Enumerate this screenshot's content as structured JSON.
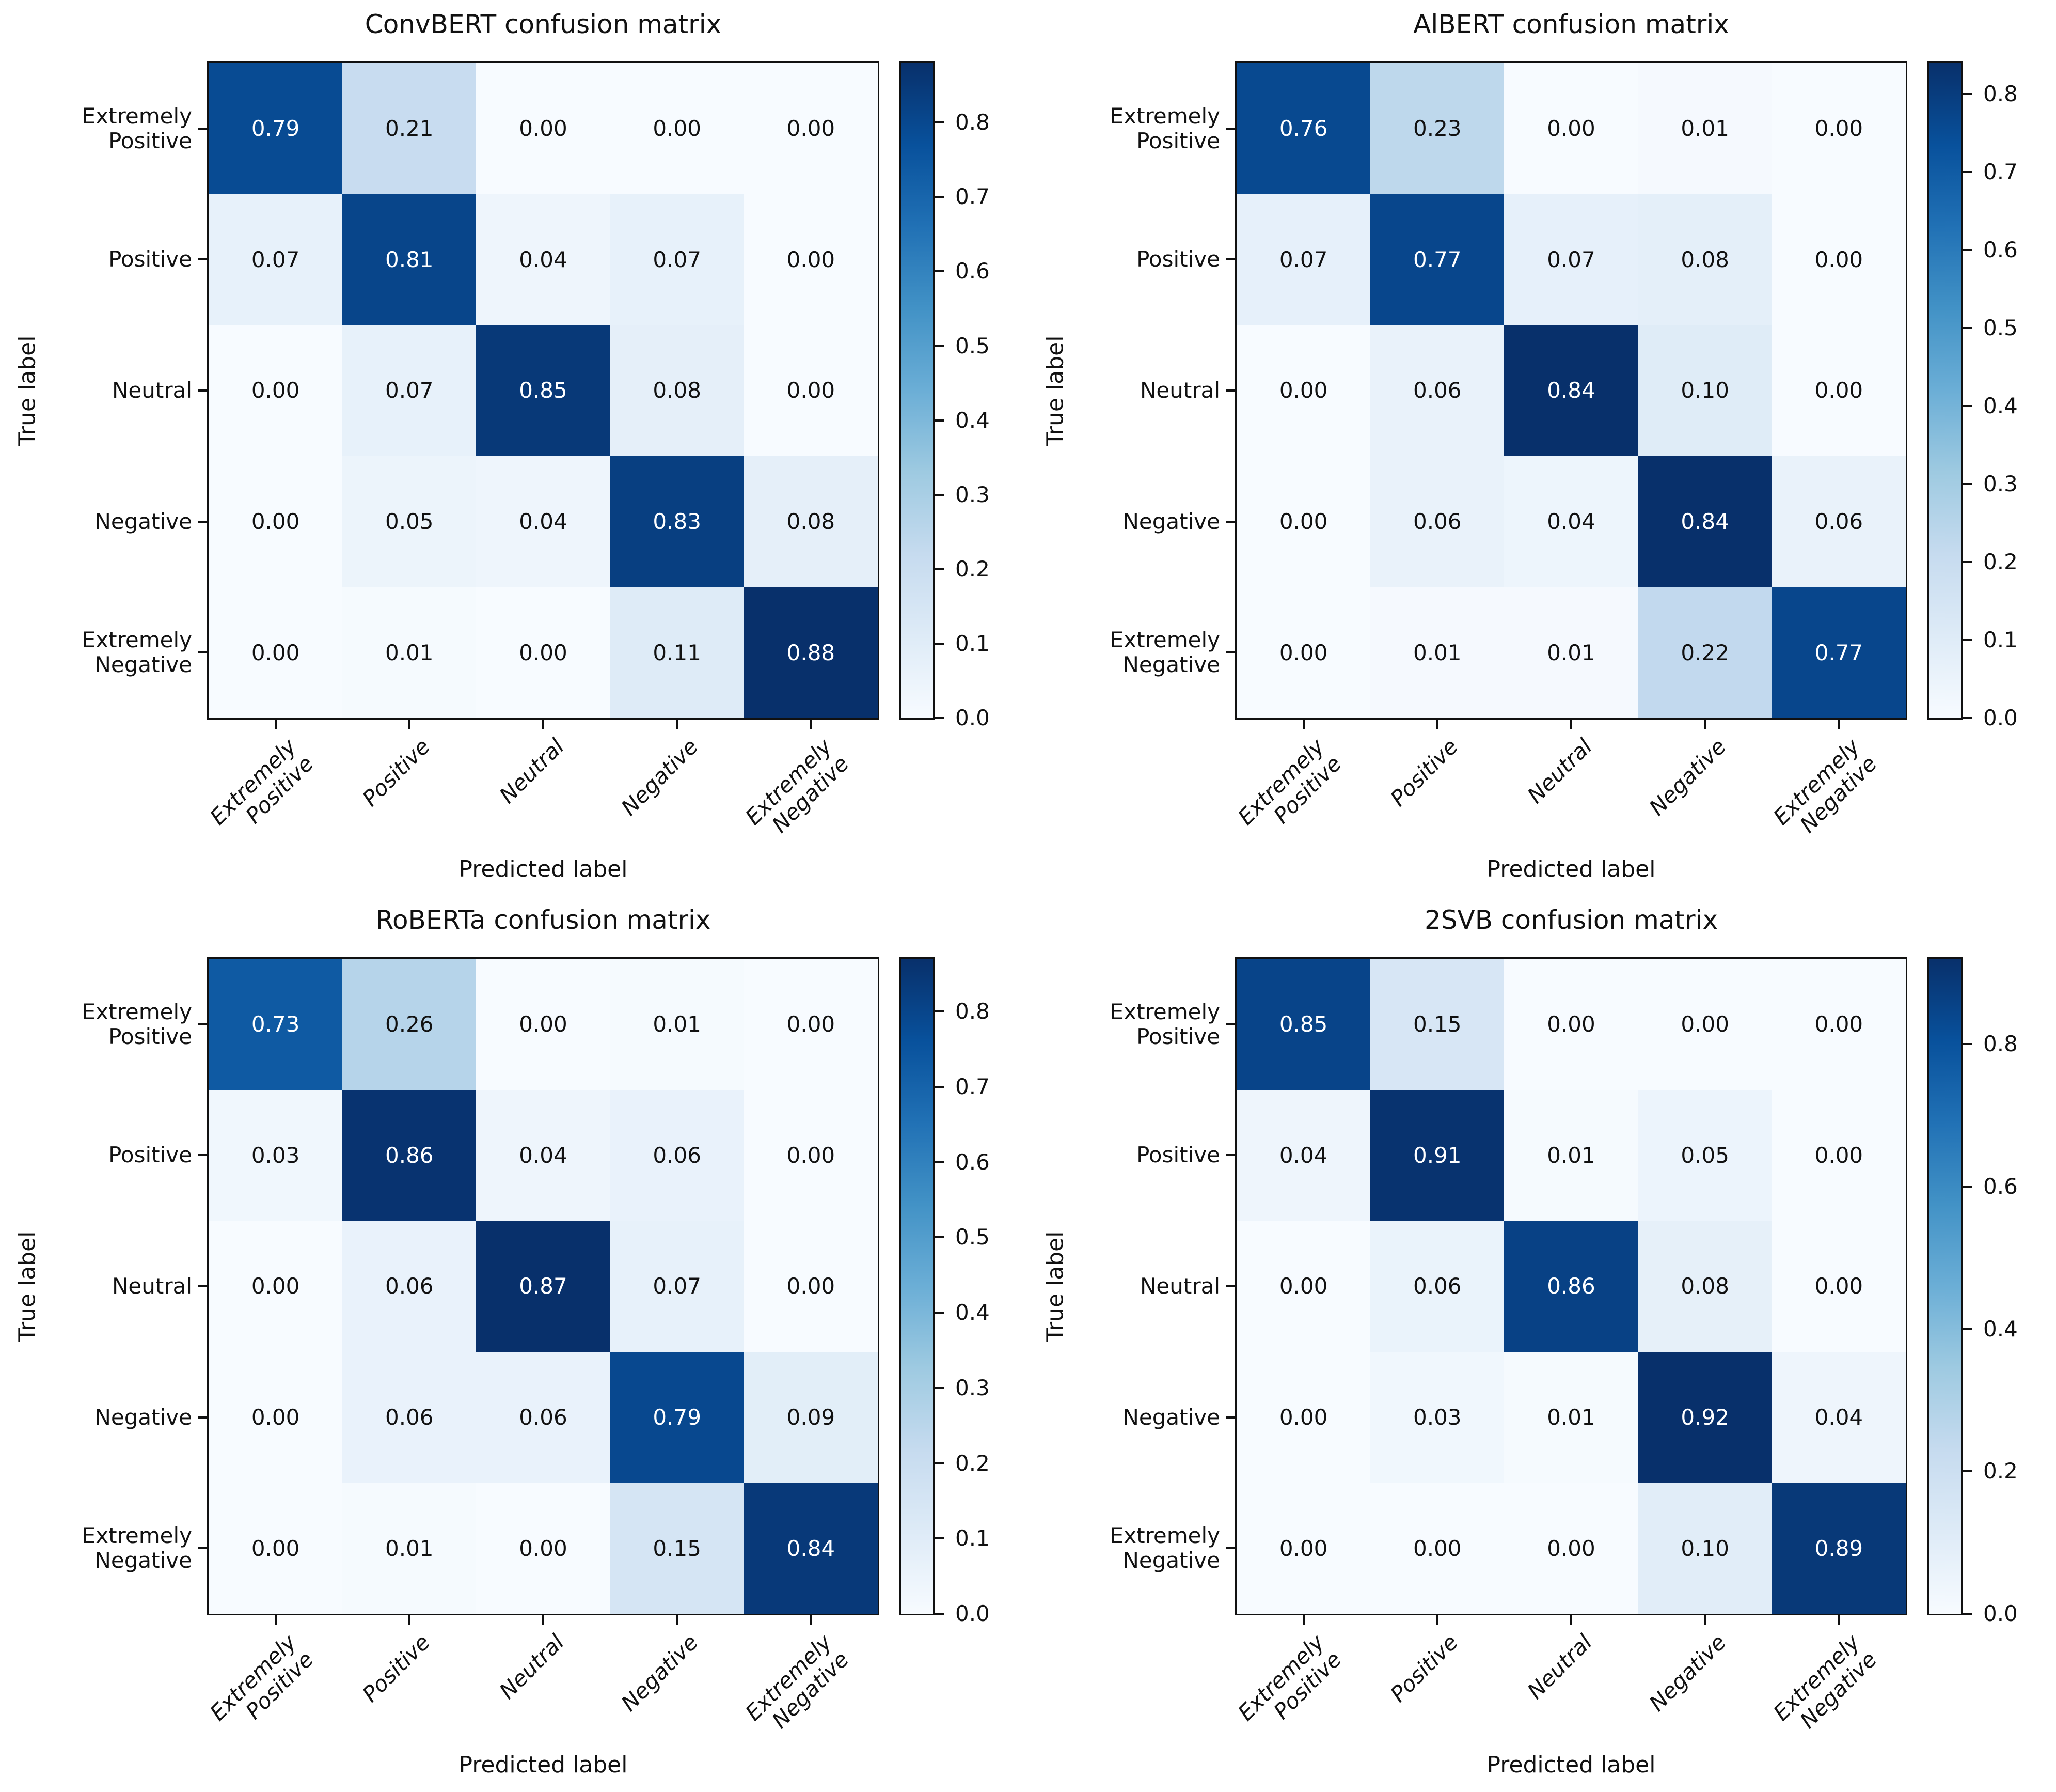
{
  "figure": {
    "layout": "2x2 grid of confusion-matrix heatmaps",
    "background": "#ffffff",
    "colormap": "Blues",
    "colormap_stops": [
      "#f7fbff",
      "#deebf7",
      "#c6dbef",
      "#9ecae1",
      "#6baed6",
      "#4292c6",
      "#2171b5",
      "#08519c",
      "#08306b"
    ],
    "cell_text_color_light": "#ffffff",
    "cell_text_color_dark": "#111111",
    "axis_color": "#111111"
  },
  "chart_data": [
    {
      "type": "heatmap",
      "title": "ConvBERT confusion matrix",
      "xlabel": "Predicted label",
      "ylabel": "True label",
      "x_categories": [
        "Extremely\nPositive",
        "Positive",
        "Neutral",
        "Negative",
        "Extremely\nNegative"
      ],
      "y_categories": [
        "Extremely\nPositive",
        "Positive",
        "Neutral",
        "Negative",
        "Extremely\nNegative"
      ],
      "matrix": [
        [
          0.79,
          0.21,
          0.0,
          0.0,
          0.0
        ],
        [
          0.07,
          0.81,
          0.04,
          0.07,
          0.0
        ],
        [
          0.0,
          0.07,
          0.85,
          0.08,
          0.0
        ],
        [
          0.0,
          0.05,
          0.04,
          0.83,
          0.08
        ],
        [
          0.0,
          0.01,
          0.0,
          0.11,
          0.88
        ]
      ],
      "colorbar_ticks": [
        0.0,
        0.1,
        0.2,
        0.3,
        0.4,
        0.5,
        0.6,
        0.7,
        0.8
      ],
      "colorbar_max": 0.88,
      "colorbar_min": 0.0
    },
    {
      "type": "heatmap",
      "title": "AlBERT confusion matrix",
      "xlabel": "Predicted label",
      "ylabel": "True label",
      "x_categories": [
        "Extremely\nPositive",
        "Positive",
        "Neutral",
        "Negative",
        "Extremely\nNegative"
      ],
      "y_categories": [
        "Extremely\nPositive",
        "Positive",
        "Neutral",
        "Negative",
        "Extremely\nNegative"
      ],
      "matrix": [
        [
          0.76,
          0.23,
          0.0,
          0.01,
          0.0
        ],
        [
          0.07,
          0.77,
          0.07,
          0.08,
          0.0
        ],
        [
          0.0,
          0.06,
          0.84,
          0.1,
          0.0
        ],
        [
          0.0,
          0.06,
          0.04,
          0.84,
          0.06
        ],
        [
          0.0,
          0.01,
          0.01,
          0.22,
          0.77
        ]
      ],
      "colorbar_ticks": [
        0.0,
        0.1,
        0.2,
        0.3,
        0.4,
        0.5,
        0.6,
        0.7,
        0.8
      ],
      "colorbar_max": 0.84,
      "colorbar_min": 0.0
    },
    {
      "type": "heatmap",
      "title": "RoBERTa confusion matrix",
      "xlabel": "Predicted label",
      "ylabel": "True label",
      "x_categories": [
        "Extremely\nPositive",
        "Positive",
        "Neutral",
        "Negative",
        "Extremely\nNegative"
      ],
      "y_categories": [
        "Extremely\nPositive",
        "Positive",
        "Neutral",
        "Negative",
        "Extremely\nNegative"
      ],
      "matrix": [
        [
          0.73,
          0.26,
          0.0,
          0.01,
          0.0
        ],
        [
          0.03,
          0.86,
          0.04,
          0.06,
          0.0
        ],
        [
          0.0,
          0.06,
          0.87,
          0.07,
          0.0
        ],
        [
          0.0,
          0.06,
          0.06,
          0.79,
          0.09
        ],
        [
          0.0,
          0.01,
          0.0,
          0.15,
          0.84
        ]
      ],
      "colorbar_ticks": [
        0.0,
        0.1,
        0.2,
        0.3,
        0.4,
        0.5,
        0.6,
        0.7,
        0.8
      ],
      "colorbar_max": 0.87,
      "colorbar_min": 0.0
    },
    {
      "type": "heatmap",
      "title": "2SVB confusion matrix",
      "xlabel": "Predicted label",
      "ylabel": "True label",
      "x_categories": [
        "Extremely\nPositive",
        "Positive",
        "Neutral",
        "Negative",
        "Extremely\nNegative"
      ],
      "y_categories": [
        "Extremely\nPositive",
        "Positive",
        "Neutral",
        "Negative",
        "Extremely\nNegative"
      ],
      "matrix": [
        [
          0.85,
          0.15,
          0.0,
          0.0,
          0.0
        ],
        [
          0.04,
          0.91,
          0.01,
          0.05,
          0.0
        ],
        [
          0.0,
          0.06,
          0.86,
          0.08,
          0.0
        ],
        [
          0.0,
          0.03,
          0.01,
          0.92,
          0.04
        ],
        [
          0.0,
          0.0,
          0.0,
          0.1,
          0.89
        ]
      ],
      "colorbar_ticks": [
        0.0,
        0.2,
        0.4,
        0.6,
        0.8
      ],
      "colorbar_max": 0.92,
      "colorbar_min": 0.0
    }
  ]
}
